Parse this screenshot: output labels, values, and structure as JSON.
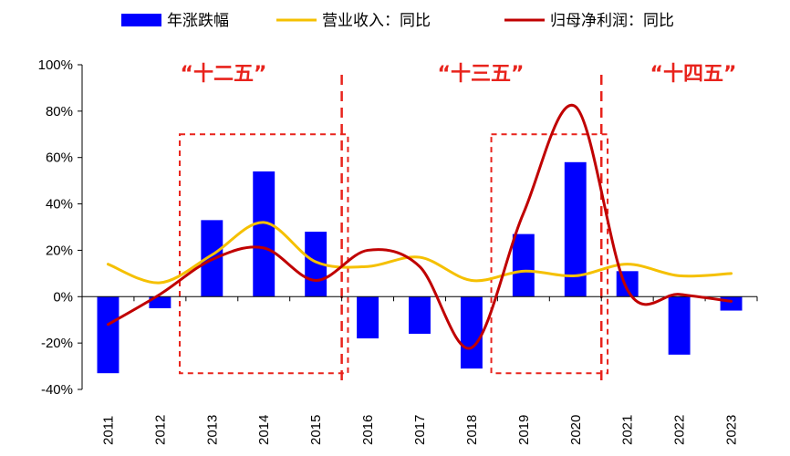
{
  "chart_data": {
    "type": "bar+line",
    "categories": [
      "2011",
      "2012",
      "2013",
      "2014",
      "2015",
      "2016",
      "2017",
      "2018",
      "2019",
      "2020",
      "2021",
      "2022",
      "2023"
    ],
    "series": [
      {
        "name": "年涨跌幅",
        "kind": "bar",
        "color": "#0000ff",
        "values": [
          -33,
          -5,
          33,
          54,
          28,
          -18,
          -16,
          -31,
          27,
          58,
          11,
          -25,
          -6
        ]
      },
      {
        "name": "营业收入：同比",
        "kind": "line",
        "color": "#f5c000",
        "values": [
          14,
          6,
          18,
          32,
          15,
          13,
          17,
          7,
          11,
          9,
          14,
          9,
          10
        ]
      },
      {
        "name": "归母净利润：同比",
        "kind": "line",
        "color": "#c00000",
        "values": [
          -12,
          1,
          16,
          21,
          7,
          20,
          13,
          -22,
          36,
          82,
          3,
          1,
          -2
        ]
      }
    ],
    "y_ticks": [
      "100%",
      "80%",
      "60%",
      "40%",
      "20%",
      "0%",
      "-20%",
      "-40%"
    ],
    "ylim": [
      -40,
      100
    ],
    "ytick_step": 20,
    "title": "",
    "xlabel": "",
    "ylabel": "",
    "grid": false,
    "legend_position": "top",
    "annotations": [
      {
        "text": "“十二五”",
        "years": [
          "2011",
          "2015"
        ]
      },
      {
        "text": "“十三五”",
        "years": [
          "2016",
          "2020"
        ]
      },
      {
        "text": "“十四五”",
        "years": [
          "2021",
          "2023"
        ]
      }
    ],
    "highlight_boxes": [
      {
        "from": "2013",
        "to": "2015",
        "range": [
          -33,
          70
        ]
      },
      {
        "from": "2019",
        "to": "2020",
        "range": [
          -33,
          70
        ]
      }
    ],
    "dividers_after": [
      "2015",
      "2020"
    ]
  }
}
